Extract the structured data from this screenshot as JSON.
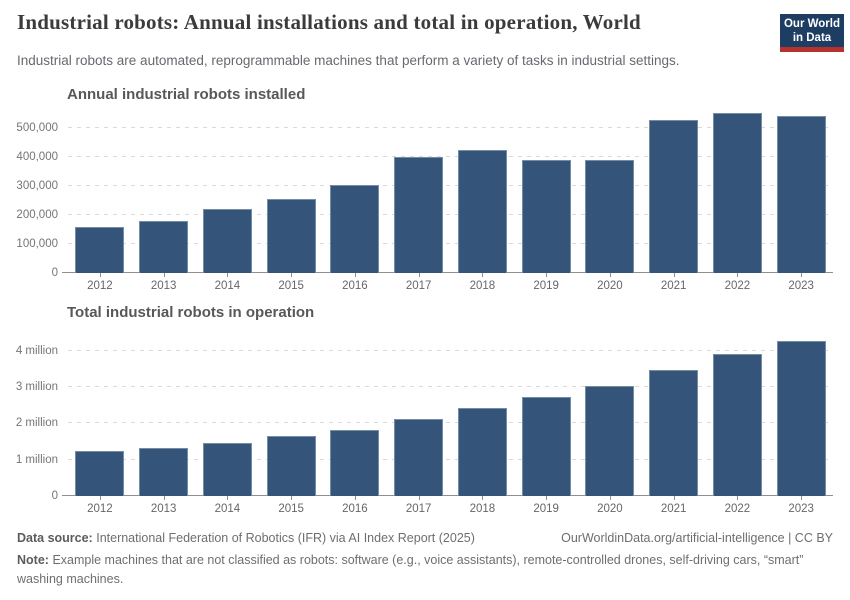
{
  "header": {
    "title": "Industrial robots: Annual installations and total in operation, World",
    "subtitle": "Industrial robots are automated, reprogrammable machines that perform a variety of tasks in industrial settings.",
    "logo": {
      "line1": "Our World",
      "line2": "in Data"
    }
  },
  "colors": {
    "bar": "#355479",
    "logo_bg": "#1d3d63",
    "logo_red": "#b5332a",
    "gridline": "#d9d9d9",
    "axis": "#8f8f8f"
  },
  "chart_data": [
    {
      "type": "bar",
      "title": "Annual industrial robots installed",
      "categories": [
        "2012",
        "2013",
        "2014",
        "2015",
        "2016",
        "2017",
        "2018",
        "2019",
        "2020",
        "2021",
        "2022",
        "2023"
      ],
      "values": [
        159000,
        178000,
        221000,
        254000,
        304000,
        400000,
        423000,
        391000,
        390000,
        526000,
        553000,
        541000
      ],
      "xlabel": "",
      "ylabel": "",
      "ylim": [
        0,
        569000
      ],
      "yticks": [
        {
          "value": 0,
          "label": "0"
        },
        {
          "value": 100000,
          "label": "100,000"
        },
        {
          "value": 200000,
          "label": "200,000"
        },
        {
          "value": 300000,
          "label": "300,000"
        },
        {
          "value": 400000,
          "label": "400,000"
        },
        {
          "value": 500000,
          "label": "500,000"
        }
      ],
      "grid": true,
      "legend": "none"
    },
    {
      "type": "bar",
      "title": "Total industrial robots in operation",
      "categories": [
        "2012",
        "2013",
        "2014",
        "2015",
        "2016",
        "2017",
        "2018",
        "2019",
        "2020",
        "2021",
        "2022",
        "2023"
      ],
      "values": [
        1235000,
        1332000,
        1472000,
        1664000,
        1824000,
        2125000,
        2439000,
        2729000,
        3024000,
        3479000,
        3904000,
        4282000
      ],
      "xlabel": "",
      "ylabel": "",
      "ylim": [
        0,
        4550000
      ],
      "yticks": [
        {
          "value": 0,
          "label": "0"
        },
        {
          "value": 1000000,
          "label": "1 million"
        },
        {
          "value": 2000000,
          "label": "2 million"
        },
        {
          "value": 3000000,
          "label": "3 million"
        },
        {
          "value": 4000000,
          "label": "4 million"
        }
      ],
      "grid": true,
      "legend": "none"
    }
  ],
  "footer": {
    "source_label": "Data source:",
    "source_text": "International Federation of Robotics (IFR) via AI Index Report (2025)",
    "attribution": "OurWorldinData.org/artificial-intelligence | CC BY",
    "note_label": "Note:",
    "note_text": "Example machines that are not classified as robots: software (e.g., voice assistants), remote-controlled drones, self-driving cars, “smart” washing machines."
  }
}
